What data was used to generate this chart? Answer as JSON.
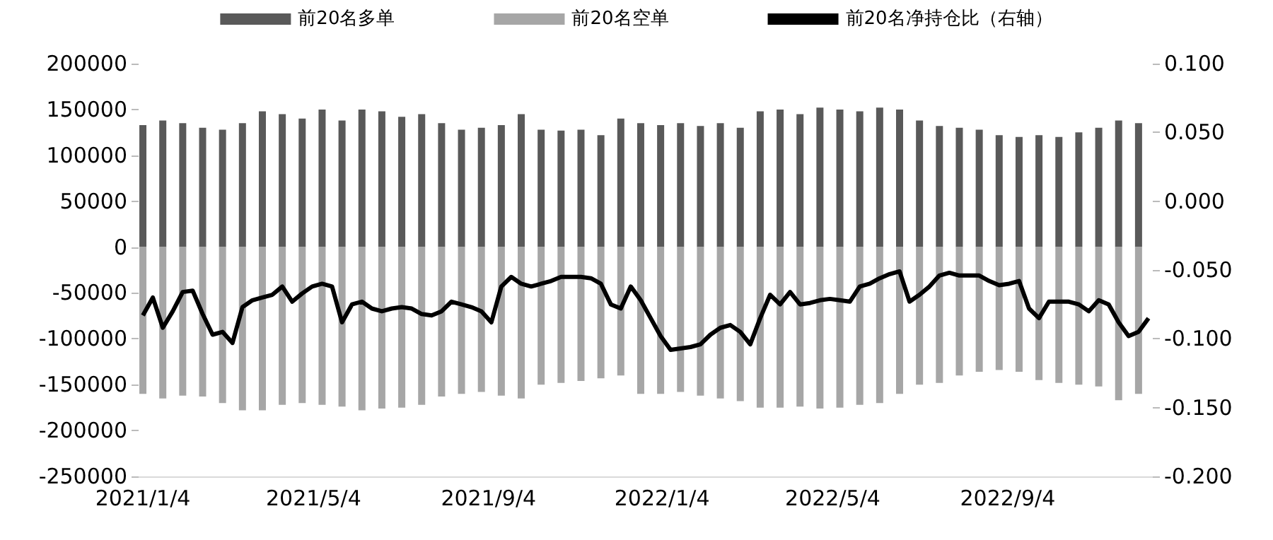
{
  "chart_data": {
    "type": "bar",
    "stacked": true,
    "legend": "top",
    "grid": false,
    "xlim": [
      "2021-01-01",
      "2022-12-15"
    ],
    "xticks": [
      {
        "value": "2021-01-04",
        "label": "2021/1/4"
      },
      {
        "value": "2021-05-04",
        "label": "2021/5/4"
      },
      {
        "value": "2021-09-04",
        "label": "2021/9/4"
      },
      {
        "value": "2022-01-04",
        "label": "2022/1/4"
      },
      {
        "value": "2022-05-04",
        "label": "2022/5/4"
      },
      {
        "value": "2022-09-04",
        "label": "2022/9/4"
      }
    ],
    "ylim": [
      -250000,
      200000
    ],
    "yticks": [
      -250000,
      -200000,
      -150000,
      -100000,
      -50000,
      0,
      50000,
      100000,
      150000,
      200000
    ],
    "y2lim": [
      -0.2,
      0.1
    ],
    "y2ticks": [
      {
        "value": -0.2,
        "label": "-0.200"
      },
      {
        "value": -0.15,
        "label": "-0.150"
      },
      {
        "value": -0.1,
        "label": "-0.100"
      },
      {
        "value": -0.05,
        "label": "-0.050"
      },
      {
        "value": 0,
        "label": "0.000"
      },
      {
        "value": 0.05,
        "label": "0.050"
      },
      {
        "value": 0.1,
        "label": "0.100"
      }
    ],
    "x": [
      "2021-01-04",
      "2021-01-18",
      "2021-02-01",
      "2021-02-15",
      "2021-03-01",
      "2021-03-15",
      "2021-03-29",
      "2021-04-12",
      "2021-04-26",
      "2021-05-10",
      "2021-05-24",
      "2021-06-07",
      "2021-06-21",
      "2021-07-05",
      "2021-07-19",
      "2021-08-02",
      "2021-08-16",
      "2021-08-30",
      "2021-09-13",
      "2021-09-27",
      "2021-10-11",
      "2021-10-25",
      "2021-11-08",
      "2021-11-22",
      "2021-12-06",
      "2021-12-20",
      "2022-01-03",
      "2022-01-17",
      "2022-01-31",
      "2022-02-14",
      "2022-02-28",
      "2022-03-14",
      "2022-03-28",
      "2022-04-11",
      "2022-04-25",
      "2022-05-09",
      "2022-05-23",
      "2022-06-06",
      "2022-06-20",
      "2022-07-04",
      "2022-07-18",
      "2022-08-01",
      "2022-08-15",
      "2022-08-29",
      "2022-09-12",
      "2022-09-26",
      "2022-10-10",
      "2022-10-24",
      "2022-11-07",
      "2022-11-21",
      "2022-12-05"
    ],
    "series": [
      {
        "name": "前20名多单",
        "color": "#595959",
        "values": [
          133000,
          138000,
          135000,
          130000,
          128000,
          135000,
          148000,
          145000,
          140000,
          150000,
          138000,
          150000,
          148000,
          142000,
          145000,
          135000,
          128000,
          130000,
          133000,
          145000,
          128000,
          127000,
          128000,
          122000,
          140000,
          135000,
          133000,
          135000,
          132000,
          135000,
          130000,
          148000,
          150000,
          145000,
          152000,
          150000,
          148000,
          152000,
          150000,
          138000,
          132000,
          130000,
          128000,
          122000,
          120000,
          122000,
          120000,
          125000,
          130000,
          138000,
          135000
        ]
      },
      {
        "name": "前20名空单",
        "color": "#a6a6a6",
        "values": [
          -160000,
          -165000,
          -162000,
          -163000,
          -170000,
          -178000,
          -178000,
          -172000,
          -170000,
          -172000,
          -174000,
          -178000,
          -176000,
          -175000,
          -172000,
          -163000,
          -160000,
          -158000,
          -162000,
          -165000,
          -150000,
          -148000,
          -146000,
          -143000,
          -140000,
          -160000,
          -160000,
          -158000,
          -162000,
          -165000,
          -168000,
          -175000,
          -175000,
          -174000,
          -176000,
          -175000,
          -172000,
          -170000,
          -160000,
          -150000,
          -148000,
          -140000,
          -136000,
          -134000,
          -136000,
          -145000,
          -148000,
          -150000,
          -152000,
          -167000,
          -160000
        ]
      },
      {
        "name": "前20名净持仓比（右轴）",
        "type": "line",
        "axis": "y2",
        "color": "#000000",
        "marker": "none",
        "line_style": "solid",
        "x": [
          "2021-01-04",
          "2021-01-11",
          "2021-01-18",
          "2021-01-25",
          "2021-02-01",
          "2021-02-08",
          "2021-02-15",
          "2021-02-22",
          "2021-03-01",
          "2021-03-08",
          "2021-03-15",
          "2021-03-22",
          "2021-03-29",
          "2021-04-05",
          "2021-04-12",
          "2021-04-19",
          "2021-04-26",
          "2021-05-03",
          "2021-05-10",
          "2021-05-17",
          "2021-05-24",
          "2021-05-31",
          "2021-06-07",
          "2021-06-14",
          "2021-06-21",
          "2021-06-28",
          "2021-07-05",
          "2021-07-12",
          "2021-07-19",
          "2021-07-26",
          "2021-08-02",
          "2021-08-09",
          "2021-08-16",
          "2021-08-23",
          "2021-08-30",
          "2021-09-06",
          "2021-09-13",
          "2021-09-20",
          "2021-09-27",
          "2021-10-04",
          "2021-10-11",
          "2021-10-18",
          "2021-10-25",
          "2021-11-01",
          "2021-11-08",
          "2021-11-15",
          "2021-11-22",
          "2021-11-29",
          "2021-12-06",
          "2021-12-13",
          "2021-12-20",
          "2021-12-27",
          "2022-01-03",
          "2022-01-10",
          "2022-01-17",
          "2022-01-24",
          "2022-01-31",
          "2022-02-07",
          "2022-02-14",
          "2022-02-21",
          "2022-02-28",
          "2022-03-07",
          "2022-03-14",
          "2022-03-21",
          "2022-03-28",
          "2022-04-04",
          "2022-04-11",
          "2022-04-18",
          "2022-04-25",
          "2022-05-02",
          "2022-05-09",
          "2022-05-16",
          "2022-05-23",
          "2022-05-30",
          "2022-06-06",
          "2022-06-13",
          "2022-06-20",
          "2022-06-27",
          "2022-07-04",
          "2022-07-11",
          "2022-07-18",
          "2022-07-25",
          "2022-08-01",
          "2022-08-08",
          "2022-08-15",
          "2022-08-22",
          "2022-08-29",
          "2022-09-05",
          "2022-09-12",
          "2022-09-19",
          "2022-09-26",
          "2022-10-03",
          "2022-10-10",
          "2022-10-17",
          "2022-10-24",
          "2022-10-31",
          "2022-11-07",
          "2022-11-14",
          "2022-11-21",
          "2022-11-28",
          "2022-12-05",
          "2022-12-12"
        ],
        "values": [
          -0.083,
          -0.07,
          -0.092,
          -0.08,
          -0.066,
          -0.065,
          -0.082,
          -0.097,
          -0.095,
          -0.103,
          -0.077,
          -0.072,
          -0.07,
          -0.068,
          -0.062,
          -0.073,
          -0.067,
          -0.062,
          -0.06,
          -0.062,
          -0.088,
          -0.075,
          -0.073,
          -0.078,
          -0.08,
          -0.078,
          -0.077,
          -0.078,
          -0.082,
          -0.083,
          -0.08,
          -0.073,
          -0.075,
          -0.077,
          -0.08,
          -0.088,
          -0.062,
          -0.055,
          -0.06,
          -0.062,
          -0.06,
          -0.058,
          -0.055,
          -0.055,
          -0.055,
          -0.056,
          -0.06,
          -0.075,
          -0.078,
          -0.062,
          -0.072,
          -0.085,
          -0.098,
          -0.108,
          -0.107,
          -0.106,
          -0.104,
          -0.097,
          -0.092,
          -0.09,
          -0.095,
          -0.104,
          -0.085,
          -0.068,
          -0.075,
          -0.066,
          -0.075,
          -0.074,
          -0.072,
          -0.071,
          -0.072,
          -0.073,
          -0.062,
          -0.06,
          -0.056,
          -0.053,
          -0.051,
          -0.073,
          -0.068,
          -0.062,
          -0.054,
          -0.052,
          -0.054,
          -0.054,
          -0.054,
          -0.058,
          -0.061,
          -0.06,
          -0.058,
          -0.078,
          -0.085,
          -0.073,
          -0.073,
          -0.073,
          -0.075,
          -0.08,
          -0.072,
          -0.075,
          -0.088,
          -0.098,
          -0.095,
          -0.085
        ]
      }
    ]
  }
}
